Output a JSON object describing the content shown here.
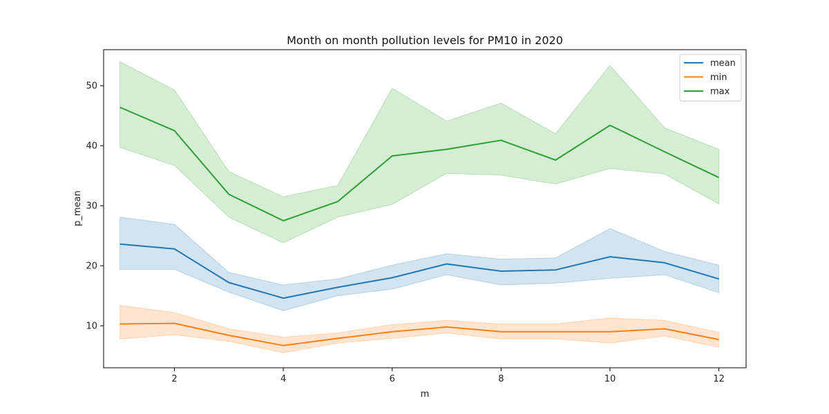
{
  "chart_data": {
    "type": "line",
    "title": "Month on month pollution levels for PM10 in 2020",
    "xlabel": "m",
    "ylabel": "p_mean",
    "xlim": [
      0.7,
      12.5
    ],
    "ylim": [
      3,
      56
    ],
    "xticks": [
      2,
      4,
      6,
      8,
      10,
      12
    ],
    "yticks": [
      10,
      20,
      30,
      40,
      50
    ],
    "grid": false,
    "legend": "top-right",
    "x": [
      1,
      2,
      3,
      4,
      5,
      6,
      7,
      8,
      9,
      10,
      11,
      12
    ],
    "series": [
      {
        "name": "mean",
        "color": "#1f77b4",
        "values": [
          23.6,
          22.8,
          17.2,
          14.6,
          16.4,
          18.0,
          20.3,
          19.1,
          19.3,
          21.5,
          20.5,
          17.8
        ],
        "upper": [
          28.1,
          26.9,
          18.9,
          16.8,
          17.8,
          20.1,
          22.0,
          21.1,
          21.3,
          26.2,
          22.4,
          20.1
        ],
        "lower": [
          19.4,
          19.4,
          15.6,
          12.5,
          15.0,
          16.1,
          18.5,
          16.8,
          17.1,
          17.9,
          18.5,
          15.5
        ]
      },
      {
        "name": "min",
        "color": "#ff7f0e",
        "values": [
          10.3,
          10.4,
          8.4,
          6.7,
          7.9,
          9.0,
          9.8,
          9.0,
          9.0,
          9.0,
          9.5,
          7.7
        ],
        "upper": [
          13.4,
          12.2,
          9.5,
          8.1,
          8.8,
          10.2,
          10.9,
          10.3,
          10.3,
          11.3,
          10.9,
          8.9
        ],
        "lower": [
          7.8,
          8.5,
          7.4,
          5.5,
          7.1,
          7.9,
          8.8,
          7.8,
          7.8,
          7.1,
          8.3,
          6.4
        ]
      },
      {
        "name": "max",
        "color": "#2ca02c",
        "values": [
          46.4,
          42.5,
          31.9,
          27.5,
          30.7,
          38.3,
          39.4,
          40.9,
          37.6,
          43.4,
          39.0,
          34.7
        ],
        "upper": [
          54.0,
          49.3,
          35.7,
          31.5,
          33.4,
          49.6,
          44.1,
          47.1,
          42.0,
          53.4,
          43.0,
          39.4
        ],
        "lower": [
          39.7,
          36.7,
          28.1,
          23.8,
          28.1,
          30.2,
          35.4,
          35.1,
          33.6,
          36.2,
          35.3,
          30.3
        ]
      }
    ]
  }
}
